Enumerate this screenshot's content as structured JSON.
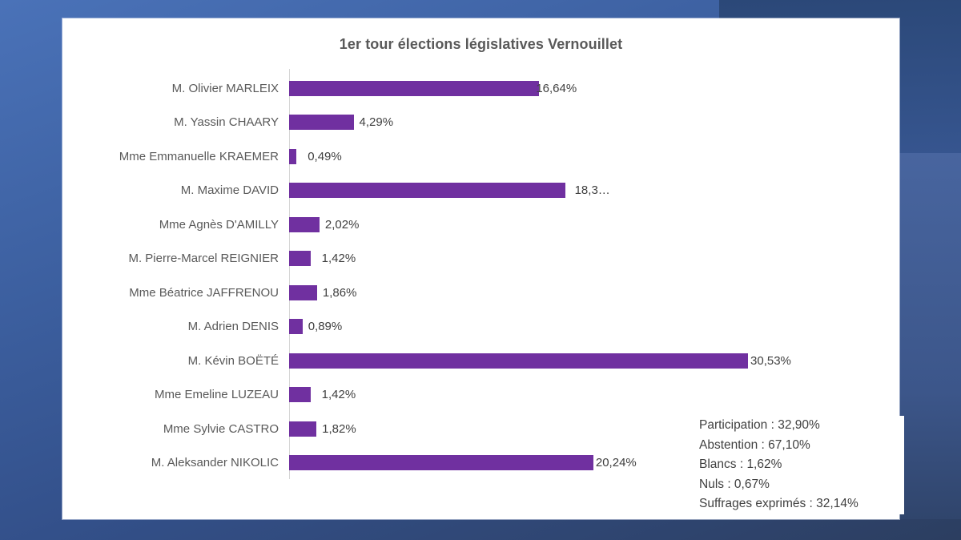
{
  "chart_data": {
    "type": "bar",
    "orientation": "horizontal",
    "title": "1er tour élections législatives Vernouillet",
    "categories": [
      "M. Olivier MARLEIX",
      "M. Yassin CHAARY",
      "Mme Emmanuelle KRAEMER",
      "M. Maxime DAVID",
      "Mme Agnès D'AMILLY",
      "M. Pierre-Marcel REIGNIER",
      "Mme Béatrice JAFFRENOU",
      "M. Adrien DENIS",
      "M. Kévin BOËTÉ",
      "Mme Emeline LUZEAU",
      "Mme Sylvie CASTRO",
      "M. Aleksander NIKOLIC"
    ],
    "values": [
      16.64,
      4.29,
      0.49,
      18.36,
      2.02,
      1.42,
      1.86,
      0.89,
      30.53,
      1.42,
      1.82,
      20.24
    ],
    "value_labels": [
      "16,64%",
      "4,29%",
      "0,49%",
      "18,3…",
      "2,02%",
      "1,42%",
      "1,86%",
      "0,89%",
      "30,53%",
      "1,42%",
      "1,82%",
      "20,24%"
    ],
    "xlabel": "",
    "ylabel": "",
    "xlim": [
      0,
      32.5
    ],
    "grid": false,
    "legend": false,
    "bar_color": "#7030A0"
  },
  "stats": {
    "lines": [
      "Participation : 32,90%",
      "Abstention : 67,10%",
      "Blancs : 1,62%",
      "Nuls : 0,67%",
      "Suffrages exprimés : 32,14%"
    ]
  },
  "colors": {
    "bar": "#7030A0",
    "label_gray": "#595959",
    "value_gray": "#404040",
    "axis_line": "#D6D6D6",
    "card_bg": "#FFFFFF",
    "bg_blue_light": "#4A72B8",
    "bg_blue_dark": "#2C3E60",
    "bg_navy_rect": "#2B4878"
  }
}
